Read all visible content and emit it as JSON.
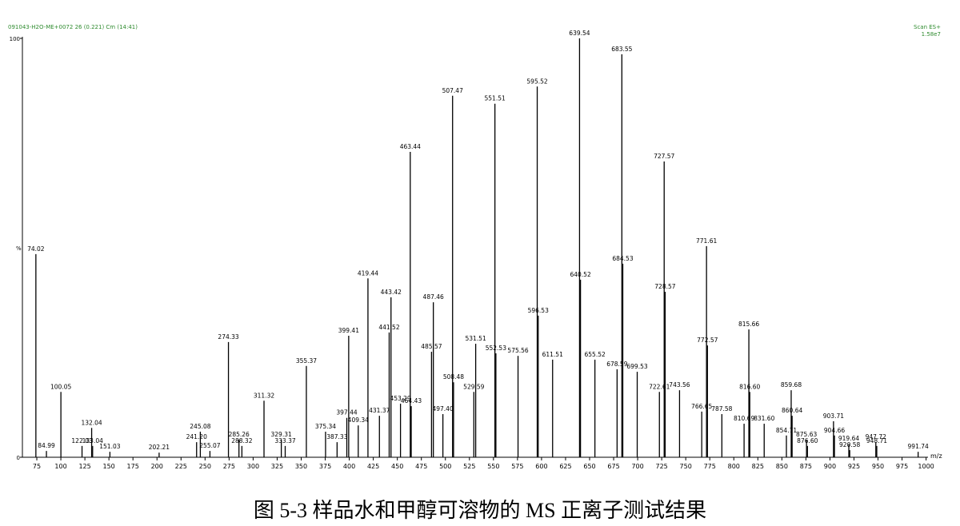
{
  "chart_data": {
    "type": "stem",
    "header_left": "091043-H2O-ME+0072 26 (0.221) Cm (14:41)",
    "header_right": [
      "Scan ES+",
      "1.58e7"
    ],
    "x_label": "m/z",
    "y_label": "%",
    "caption": "图 5-3 样品水和甲醇可溶物的 MS 正离子测试结果",
    "color": "#000000",
    "header_color": "#2e8b2e",
    "xlim": [
      60,
      1002
    ],
    "ylim": [
      0,
      100
    ],
    "xticks": [
      75,
      100,
      125,
      150,
      175,
      200,
      225,
      250,
      275,
      300,
      325,
      350,
      375,
      400,
      425,
      450,
      475,
      500,
      525,
      550,
      575,
      600,
      625,
      650,
      675,
      700,
      725,
      750,
      775,
      800,
      825,
      850,
      875,
      900,
      925,
      950,
      975,
      1000
    ],
    "yticks": [
      0,
      100
    ],
    "x": [
      74.02,
      84.99,
      100.05,
      122.03,
      132.04,
      133.04,
      151.03,
      202.21,
      241.2,
      245.08,
      255.07,
      274.33,
      285.26,
      288.32,
      311.32,
      329.31,
      333.37,
      355.37,
      375.34,
      387.33,
      397.44,
      399.41,
      409.34,
      419.44,
      431.37,
      441.52,
      443.42,
      453.29,
      463.44,
      464.43,
      485.57,
      487.46,
      497.4,
      507.47,
      508.48,
      529.59,
      531.51,
      551.51,
      552.53,
      575.56,
      595.52,
      596.53,
      611.51,
      639.54,
      640.52,
      655.52,
      678.59,
      683.55,
      684.53,
      699.53,
      722.61,
      727.57,
      728.57,
      743.56,
      766.65,
      771.61,
      772.57,
      787.58,
      810.69,
      815.66,
      816.6,
      831.6,
      854.71,
      859.68,
      860.64,
      875.63,
      876.6,
      903.71,
      904.66,
      919.64,
      920.58,
      947.72,
      948.71,
      991.74
    ],
    "x_labels": [
      "74.02",
      "84.99",
      "100.05",
      "122.03",
      "132.04",
      "133.04",
      "151.03",
      "202.21",
      "241.20",
      "245.08",
      "255.07",
      "274.33",
      "285.26",
      "288.32",
      "311.32",
      "329.31",
      "333.37",
      "355.37",
      "375.34",
      "387.33",
      "397.44",
      "399.41",
      "409.34",
      "419.44",
      "431.37",
      "441.52",
      "443.42",
      "453.29",
      "463.44",
      "464.43",
      "485.57",
      "487.46",
      "497.40",
      "507.47",
      "508.48",
      "529.59",
      "531.51",
      "551.51",
      "552.53",
      "575.56",
      "595.52",
      "596.53",
      "611.51",
      "639.54",
      "640.52",
      "655.52",
      "678.59",
      "683.55",
      "684.53",
      "699.53",
      "722.61",
      "727.57",
      "728.57",
      "743.56",
      "766.65",
      "771.61",
      "772.57",
      "787.58",
      "810.69",
      "815.66",
      "816.60",
      "831.60",
      "854.71",
      "859.68",
      "860.64",
      "875.63",
      "876.60",
      "903.71",
      "904.66",
      "919.64",
      "920.58",
      "947.72",
      "948.71",
      "991.74"
    ],
    "values": [
      48.5,
      1.5,
      15.6,
      2.7,
      7,
      2.7,
      1.3,
      1.1,
      3.6,
      6.1,
      1.5,
      27.5,
      4.2,
      2.7,
      13.5,
      4.2,
      2.7,
      21.8,
      6.1,
      3.6,
      9.4,
      29,
      7.6,
      42.7,
      9.9,
      29.8,
      38.2,
      12.8,
      72.9,
      12.2,
      25.2,
      37,
      10.3,
      86.3,
      17.9,
      15.6,
      27.1,
      84.4,
      24.8,
      24.2,
      88.5,
      33.8,
      23.3,
      100,
      42.4,
      23.3,
      21,
      96.2,
      46.2,
      20.4,
      15.6,
      70.6,
      39.5,
      16,
      10.9,
      50.4,
      26.7,
      10.3,
      8,
      30.5,
      15.6,
      8,
      5.2,
      16,
      9.9,
      4.2,
      2.7,
      8.6,
      5.2,
      3.2,
      1.7,
      3.6,
      2.7,
      1.3
    ]
  }
}
